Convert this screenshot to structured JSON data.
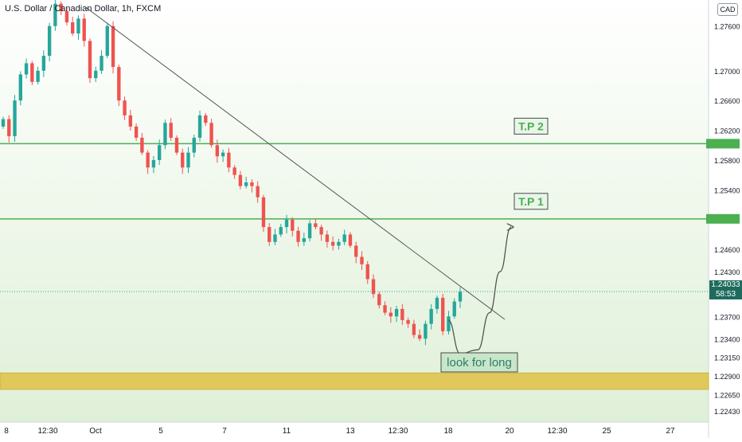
{
  "header": {
    "symbol_title": "U.S. Dollar / Canadian Dollar, 1h, FXCM",
    "currency": "CAD"
  },
  "price_label": {
    "price": "1.24033",
    "countdown": "58:53"
  },
  "chart_data": {
    "type": "candlestick",
    "title": "U.S. Dollar / Canadian Dollar, 1h, FXCM",
    "x_ticks": [
      "8",
      "12:30",
      "Oct",
      "5",
      "7",
      "11",
      "13",
      "12:30",
      "18",
      "20",
      "12:30",
      "25",
      "27"
    ],
    "y_ticks": [
      "1.22430",
      "1.22650",
      "1.22900",
      "1.23150",
      "1.23400",
      "1.23700",
      "1.24300",
      "1.24600",
      "1.25400",
      "1.25800",
      "1.26200",
      "1.26600",
      "1.27000",
      "1.27600"
    ],
    "ylim": [
      1.2228,
      1.2795
    ],
    "last_price": 1.24033,
    "trendline": {
      "from": 1.2785,
      "to": 1.2366
    },
    "levels": [
      {
        "label": "T.P 2",
        "price": 1.2602,
        "color": "#4caf50"
      },
      {
        "label": "T.P 1",
        "price": 1.2501,
        "color": "#4caf50"
      }
    ],
    "zone": {
      "from": 1.2272,
      "to": 1.2294,
      "color": "#e0c95a"
    },
    "projection_label": "look for long",
    "colors": {
      "up": "#26a69a",
      "down": "#ef5350",
      "background_top": "#ffffff",
      "background_bottom": "#dff0d8"
    },
    "candles_close": [
      1.2635,
      1.2612,
      1.266,
      1.2695,
      1.271,
      1.2685,
      1.27,
      1.272,
      1.276,
      1.279,
      1.278,
      1.2765,
      1.275,
      1.277,
      1.274,
      1.269,
      1.27,
      1.272,
      1.276,
      1.2705,
      1.266,
      1.264,
      1.2625,
      1.261,
      1.259,
      1.257,
      1.258,
      1.26,
      1.263,
      1.261,
      1.259,
      1.257,
      1.259,
      1.261,
      1.264,
      1.263,
      1.26,
      1.2585,
      1.259,
      1.257,
      1.256,
      1.2545,
      1.255,
      1.2545,
      1.253,
      1.249,
      1.247,
      1.248,
      1.249,
      1.25,
      1.2485,
      1.247,
      1.2475,
      1.2495,
      1.249,
      1.248,
      1.247,
      1.2465,
      1.247,
      1.248,
      1.2465,
      1.245,
      1.244,
      1.242,
      1.24,
      1.2385,
      1.2375,
      1.237,
      1.238,
      1.2365,
      1.236,
      1.2345,
      1.234,
      1.236,
      1.238,
      1.2395,
      1.235,
      1.237,
      1.239,
      1.2403
    ],
    "projection_path": [
      {
        "x": 0,
        "y": 1.2365
      },
      {
        "x": 1,
        "y": 1.232
      },
      {
        "x": 2,
        "y": 1.2325
      },
      {
        "x": 3,
        "y": 1.2375
      },
      {
        "x": 4,
        "y": 1.243
      },
      {
        "x": 5,
        "y": 1.249
      }
    ]
  }
}
